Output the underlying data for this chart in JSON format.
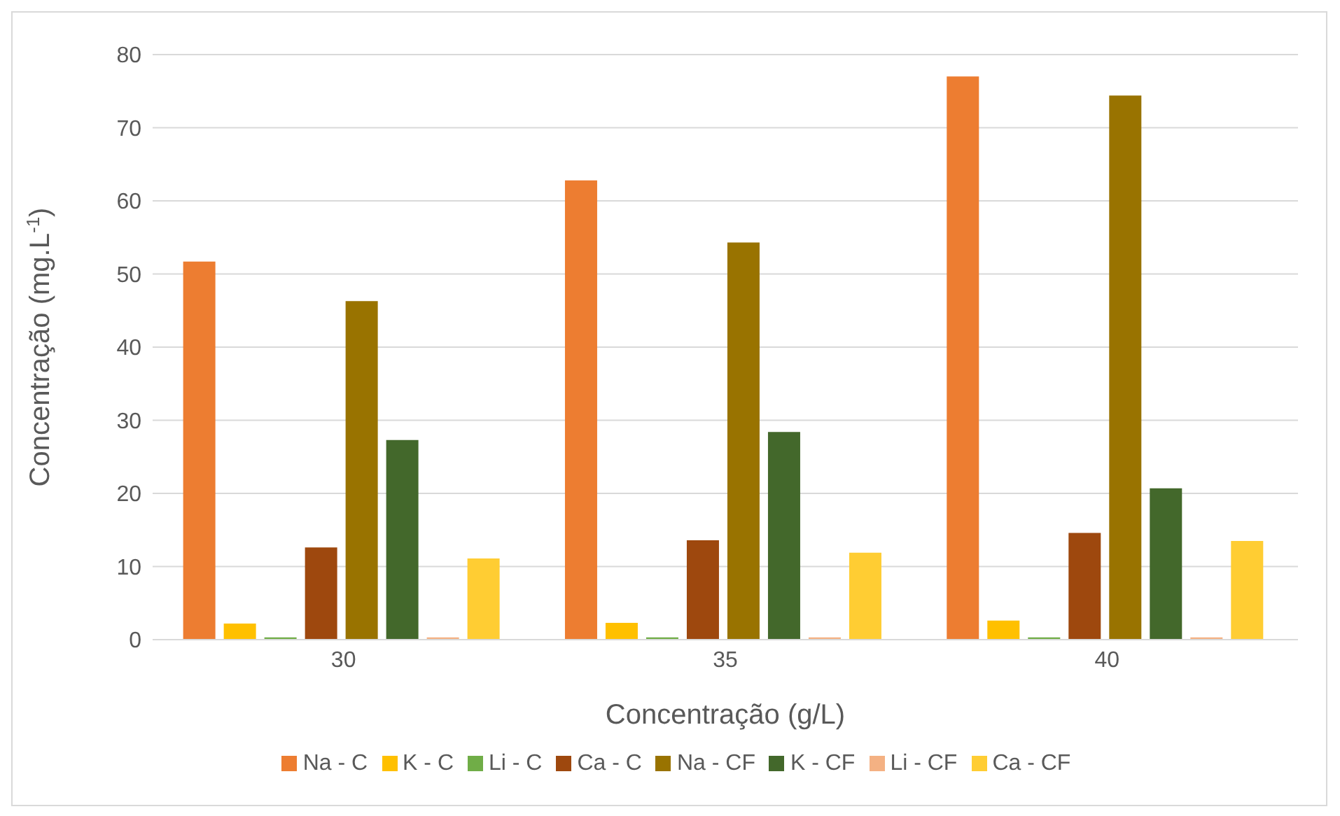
{
  "chart_data": {
    "type": "bar",
    "xlabel": "Concentração (g/L)",
    "ylabel": "Concentração (mg.L$^{-1}$)",
    "categories": [
      "30",
      "35",
      "40"
    ],
    "series": [
      {
        "name": "Na - C",
        "color": "#ed7d31",
        "values": [
          51.7,
          62.8,
          77.0
        ]
      },
      {
        "name": "K - C",
        "color": "#ffc000",
        "values": [
          2.2,
          2.3,
          2.6
        ]
      },
      {
        "name": "Li - C",
        "color": "#70ad47",
        "values": [
          0.3,
          0.3,
          0.3
        ]
      },
      {
        "name": "Ca - C",
        "color": "#9e480e",
        "values": [
          12.6,
          13.6,
          14.6
        ]
      },
      {
        "name": "Na - CF",
        "color": "#997300",
        "values": [
          46.3,
          54.3,
          74.4
        ]
      },
      {
        "name": "K - CF",
        "color": "#43682b",
        "values": [
          27.3,
          28.4,
          20.7
        ]
      },
      {
        "name": "Li - CF",
        "color": "#f4b183",
        "values": [
          0.3,
          0.3,
          0.3
        ]
      },
      {
        "name": "Ca - CF",
        "color": "#ffcd33",
        "values": [
          11.1,
          11.9,
          13.5
        ]
      }
    ],
    "ylim": [
      0,
      80
    ],
    "yticks": [
      0,
      10,
      20,
      30,
      40,
      50,
      60,
      70,
      80
    ],
    "grid": "y",
    "legend": "bottom"
  }
}
